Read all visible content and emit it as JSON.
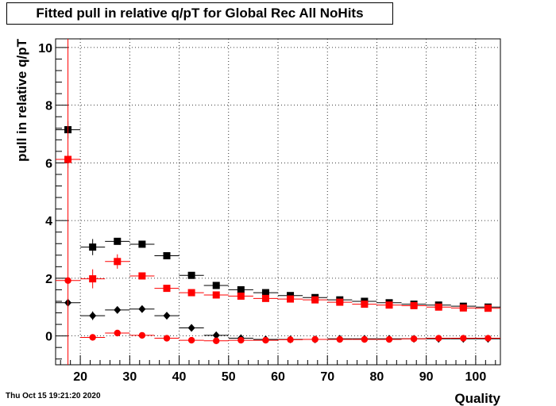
{
  "title": "Fitted pull in relative q/pT for Global Rec All NoHits",
  "timestamp": "Thu Oct 15 19:21:20 2020",
  "chart_data": {
    "type": "scatter",
    "title": "Fitted pull in relative q/pT for Global Rec All NoHits",
    "xlabel": "Quality",
    "ylabel": "pull in relative q/pT",
    "xlim": [
      15,
      105
    ],
    "ylim": [
      -1,
      10.3
    ],
    "xticks": [
      20,
      30,
      40,
      50,
      60,
      70,
      80,
      90,
      100
    ],
    "yticks": [
      0,
      2,
      4,
      6,
      8,
      10
    ],
    "grid": true,
    "bin_halfwidth": 2.5,
    "series": [
      {
        "marker": "square",
        "color": "#000000",
        "x": [
          17.5,
          22.5,
          27.5,
          32.5,
          37.5,
          42.5,
          47.5,
          52.5,
          57.5,
          62.5,
          67.5,
          72.5,
          77.5,
          82.5,
          87.5,
          92.5,
          97.5,
          102.5
        ],
        "y": [
          7.15,
          3.08,
          3.28,
          3.18,
          2.78,
          2.1,
          1.75,
          1.6,
          1.5,
          1.4,
          1.33,
          1.25,
          1.2,
          1.15,
          1.1,
          1.07,
          1.03,
          1.0
        ],
        "yerr": [
          0.3,
          0.28,
          0.1,
          0.08,
          0.06,
          0.05,
          0.04,
          0.04,
          0.03,
          0.03,
          0.03,
          0.03,
          0.02,
          0.02,
          0.02,
          0.02,
          0.02,
          0.02
        ]
      },
      {
        "marker": "square",
        "color": "#ff0000",
        "x": [
          17.5,
          22.5,
          27.5,
          32.5,
          37.5,
          42.5,
          47.5,
          52.5,
          57.5,
          62.5,
          67.5,
          72.5,
          77.5,
          82.5,
          87.5,
          92.5,
          97.5,
          102.5
        ],
        "y": [
          6.12,
          1.98,
          2.58,
          2.08,
          1.65,
          1.5,
          1.42,
          1.38,
          1.3,
          1.28,
          1.25,
          1.17,
          1.1,
          1.07,
          1.05,
          1.0,
          0.97,
          0.96
        ],
        "yerr": [
          0.3,
          0.33,
          0.25,
          0.08,
          0.06,
          0.05,
          0.04,
          0.04,
          0.03,
          0.03,
          0.03,
          0.03,
          0.02,
          0.02,
          0.02,
          0.02,
          0.02,
          0.02
        ]
      },
      {
        "marker": "diamond",
        "color": "#000000",
        "x": [
          17.5,
          22.5,
          27.5,
          32.5,
          37.5,
          42.5,
          47.5,
          52.5,
          57.5,
          62.5,
          67.5,
          72.5,
          77.5,
          82.5,
          87.5,
          92.5,
          97.5,
          102.5
        ],
        "y": [
          1.15,
          0.7,
          0.9,
          0.93,
          0.7,
          0.28,
          0.02,
          -0.08,
          -0.12,
          -0.12,
          -0.12,
          -0.1,
          -0.1,
          -0.1,
          -0.1,
          -0.1,
          -0.1,
          -0.1
        ],
        "yerr": [
          0.15,
          0.15,
          0.08,
          0.06,
          0.05,
          0.04,
          0.03,
          0.03,
          0.02,
          0.02,
          0.02,
          0.02,
          0.02,
          0.02,
          0.02,
          0.02,
          0.02,
          0.02
        ]
      },
      {
        "marker": "circle",
        "color": "#ff0000",
        "x": [
          17.5,
          22.5,
          27.5,
          32.5,
          37.5,
          42.5,
          47.5,
          52.5,
          57.5,
          62.5,
          67.5,
          72.5,
          77.5,
          82.5,
          87.5,
          92.5,
          97.5,
          102.5
        ],
        "y": [
          1.92,
          -0.05,
          0.1,
          0.02,
          -0.08,
          -0.15,
          -0.17,
          -0.15,
          -0.15,
          -0.13,
          -0.12,
          -0.12,
          -0.12,
          -0.12,
          -0.1,
          -0.08,
          -0.08,
          -0.08
        ],
        "yerr": [
          10.3,
          0.1,
          0.08,
          0.05,
          0.04,
          0.03,
          0.03,
          0.02,
          0.02,
          0.02,
          0.02,
          0.02,
          0.02,
          0.02,
          0.02,
          0.02,
          0.02,
          0.02
        ]
      }
    ]
  }
}
